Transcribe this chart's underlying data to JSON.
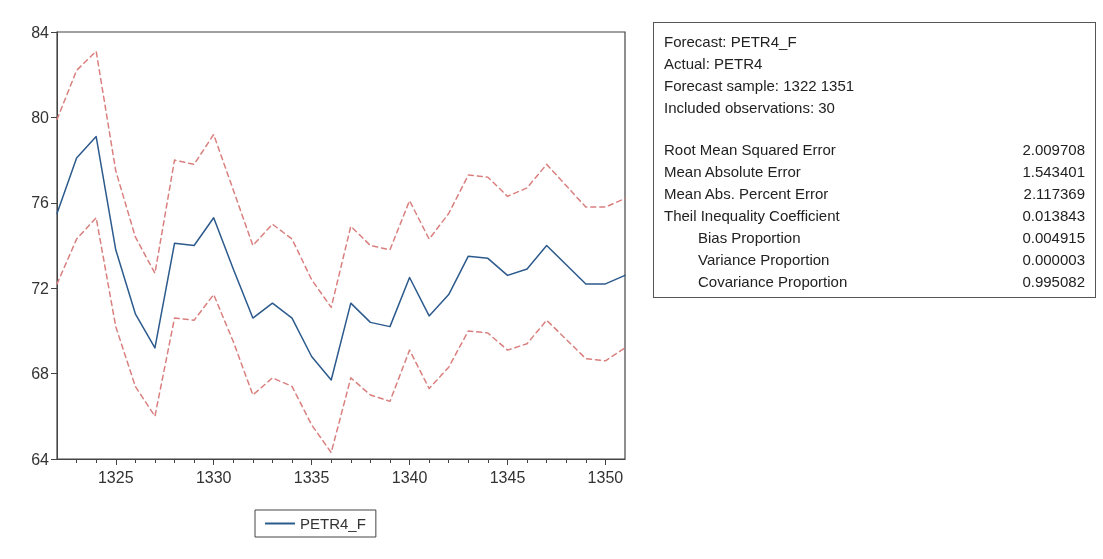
{
  "chart_data": [
    {
      "type": "line",
      "xlim": [
        1322,
        1351
      ],
      "xticks": [
        1325,
        1330,
        1335,
        1340,
        1345,
        1350
      ],
      "ylim": [
        64,
        84
      ],
      "yticks": [
        64,
        68,
        72,
        76,
        80,
        84
      ],
      "grid": false,
      "legend": "bottom",
      "marker": "none",
      "x": [
        1322,
        1323,
        1324,
        1325,
        1326,
        1327,
        1328,
        1329,
        1330,
        1331,
        1332,
        1333,
        1334,
        1335,
        1336,
        1337,
        1338,
        1339,
        1340,
        1341,
        1342,
        1343,
        1344,
        1345,
        1346,
        1347,
        1348,
        1349,
        1350,
        1351
      ],
      "series": [
        {
          "name": "PETR4_F",
          "color": "#2c5a8c",
          "line_style": "solid",
          "values": [
            75.5,
            78.1,
            79.1,
            73.8,
            70.8,
            69.2,
            74.1,
            74.0,
            75.3,
            72.9,
            70.6,
            71.3,
            70.6,
            68.8,
            67.7,
            71.3,
            70.4,
            70.2,
            72.5,
            70.7,
            71.7,
            73.5,
            73.4,
            72.6,
            72.9,
            74.0,
            73.1,
            72.2,
            72.2,
            72.6
          ]
        },
        {
          "color": "#d9807f",
          "line_style": "dashed",
          "values": [
            79.9,
            82.2,
            83.1,
            77.5,
            74.4,
            72.7,
            78.0,
            77.8,
            79.2,
            76.6,
            74.0,
            75.0,
            74.3,
            72.4,
            71.1,
            74.9,
            74.0,
            73.8,
            76.1,
            74.3,
            75.5,
            77.3,
            77.2,
            76.3,
            76.7,
            77.8,
            76.8,
            75.8,
            75.8,
            76.2
          ]
        },
        {
          "color": "#d9807f",
          "line_style": "dashed",
          "values": [
            72.2,
            74.3,
            75.3,
            70.2,
            67.4,
            66.0,
            70.6,
            70.5,
            71.7,
            69.5,
            67.0,
            67.8,
            67.4,
            65.6,
            64.3,
            67.8,
            67.0,
            66.7,
            69.1,
            67.3,
            68.3,
            70.0,
            69.9,
            69.1,
            69.4,
            70.5,
            69.6,
            68.7,
            68.6,
            69.2
          ]
        }
      ]
    },
    {
      "type": "other",
      "annotations": [
        "Forecast: PETR4_F",
        "Actual: PETR4",
        "Forecast sample: 1322 1351",
        "Included observations: 30"
      ],
      "categories": [
        "Root Mean Squared Error",
        "Mean Absolute Error",
        "Mean Abs. Percent Error",
        "Theil Inequality Coefficient",
        "Bias Proportion",
        "Variance Proportion",
        "Covariance Proportion"
      ],
      "value_labels": [
        "2.009708",
        "1.543401",
        "2.117369",
        "0.013843",
        "0.004915",
        "0.000003",
        "0.995082"
      ]
    }
  ]
}
